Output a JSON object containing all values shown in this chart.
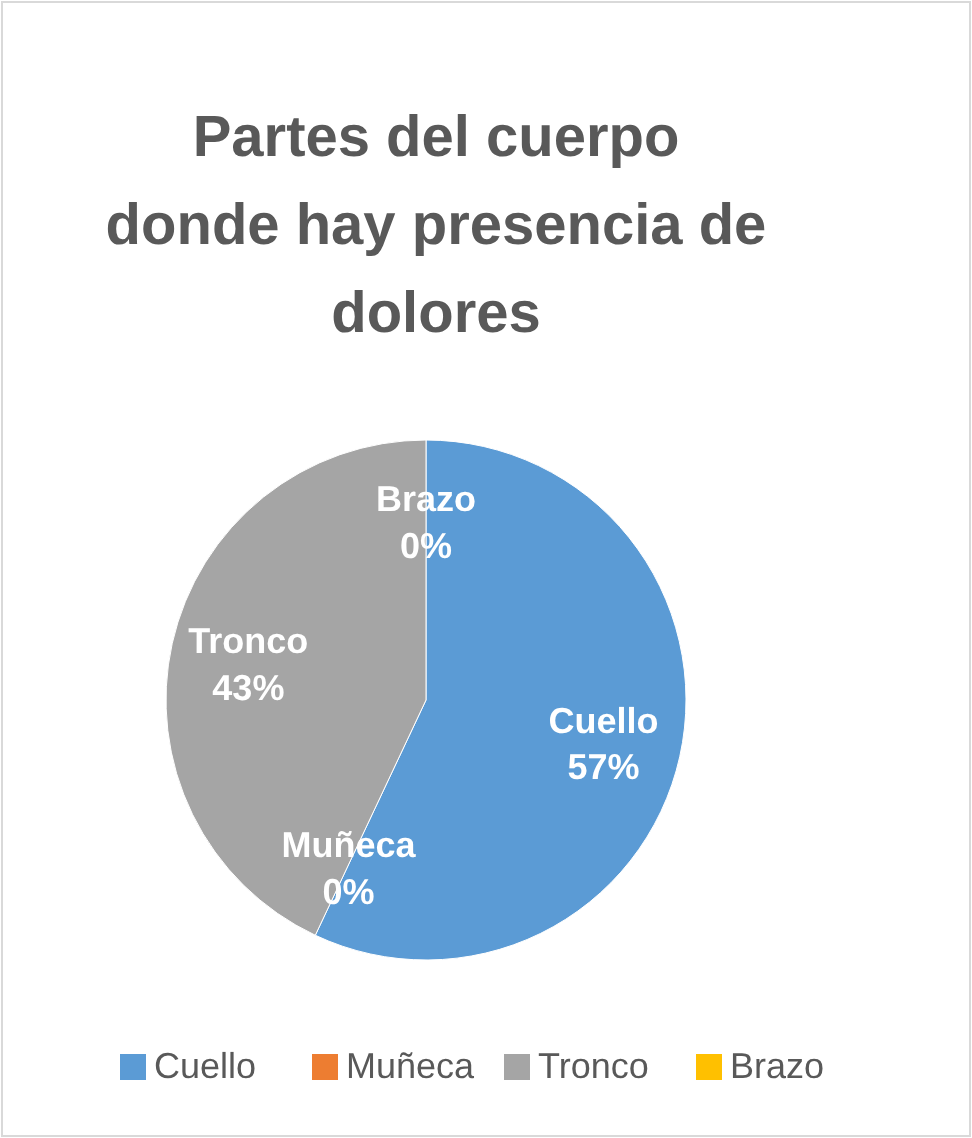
{
  "chart_data": {
    "type": "pie",
    "title": "Partes del cuerpo donde hay presencia de dolores",
    "categories": [
      "Cuello",
      "Muñeca",
      "Tronco",
      "Brazo"
    ],
    "values": [
      57,
      0,
      43,
      0
    ],
    "colors": [
      "#5b9bd5",
      "#ed7d31",
      "#a5a5a5",
      "#ffc000"
    ],
    "value_labels": [
      "57%",
      "0%",
      "43%",
      "0%"
    ],
    "legend": "bottom"
  }
}
